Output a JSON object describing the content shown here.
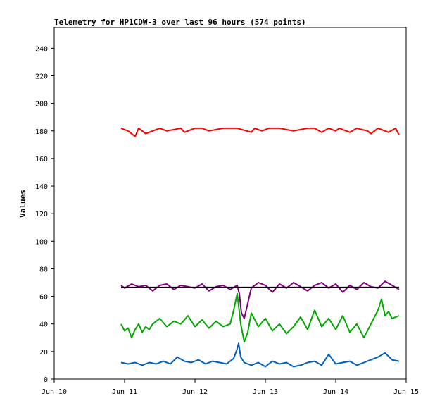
{
  "chart_data": {
    "type": "line",
    "title": "Telemetry for HP1CDW-3 over last 96 hours (574 points)",
    "xlabel": "",
    "ylabel": "Values",
    "x_ticks": [
      "Jun 10",
      "Jun 11",
      "Jun 12",
      "Jun 13",
      "Jun 14",
      "Jun 15"
    ],
    "xlim": [
      0,
      5
    ],
    "y_ticks": [
      0,
      20,
      40,
      60,
      80,
      100,
      120,
      140,
      160,
      180,
      200,
      220,
      240
    ],
    "ylim": [
      0,
      255
    ],
    "grid": false,
    "legend": "none",
    "series": [
      {
        "color": "#ff0000",
        "x": [
          0.95,
          1.05,
          1.15,
          1.2,
          1.3,
          1.5,
          1.6,
          1.8,
          1.85,
          2.0,
          2.1,
          2.2,
          2.4,
          2.6,
          2.8,
          2.85,
          2.95,
          3.05,
          3.2,
          3.4,
          3.6,
          3.7,
          3.8,
          3.9,
          4.0,
          4.05,
          4.2,
          4.3,
          4.45,
          4.5,
          4.6,
          4.7,
          4.75,
          4.85,
          4.9
        ],
        "y": [
          182,
          180,
          176,
          182,
          178,
          182,
          180,
          182,
          179,
          182,
          182,
          180,
          182,
          182,
          179,
          182,
          180,
          182,
          182,
          180,
          182,
          182,
          179,
          182,
          180,
          182,
          179,
          182,
          180,
          178,
          182,
          180,
          179,
          182,
          177
        ]
      },
      {
        "color": "#800080",
        "x": [
          0.95,
          1.0,
          1.1,
          1.2,
          1.3,
          1.4,
          1.5,
          1.6,
          1.7,
          1.8,
          1.9,
          2.0,
          2.1,
          2.2,
          2.3,
          2.4,
          2.5,
          2.6,
          2.63,
          2.66,
          2.7,
          2.8,
          2.9,
          3.0,
          3.1,
          3.2,
          3.3,
          3.4,
          3.5,
          3.6,
          3.7,
          3.8,
          3.9,
          4.0,
          4.1,
          4.2,
          4.3,
          4.4,
          4.5,
          4.6,
          4.7,
          4.8,
          4.9
        ],
        "y": [
          68,
          66,
          69,
          67,
          68,
          64,
          68,
          69,
          65,
          68,
          67,
          66,
          69,
          64,
          67,
          68,
          65,
          68,
          62,
          48,
          44,
          66,
          70,
          68,
          63,
          69,
          66,
          70,
          67,
          64,
          68,
          70,
          66,
          69,
          63,
          68,
          65,
          70,
          67,
          66,
          71,
          68,
          65
        ]
      },
      {
        "color": "#000000",
        "x": [
          0.95,
          4.9
        ],
        "y": [
          66.5,
          66.5
        ]
      },
      {
        "color": "#00aa00",
        "x": [
          0.95,
          1.0,
          1.05,
          1.1,
          1.15,
          1.2,
          1.25,
          1.3,
          1.35,
          1.4,
          1.5,
          1.6,
          1.7,
          1.8,
          1.9,
          2.0,
          2.1,
          2.2,
          2.3,
          2.4,
          2.5,
          2.55,
          2.6,
          2.65,
          2.7,
          2.75,
          2.8,
          2.9,
          3.0,
          3.1,
          3.2,
          3.3,
          3.4,
          3.5,
          3.6,
          3.7,
          3.8,
          3.9,
          4.0,
          4.1,
          4.2,
          4.3,
          4.4,
          4.5,
          4.6,
          4.65,
          4.7,
          4.75,
          4.8,
          4.9
        ],
        "y": [
          40,
          35,
          37,
          30,
          36,
          40,
          34,
          38,
          36,
          40,
          44,
          38,
          42,
          40,
          46,
          38,
          43,
          37,
          42,
          38,
          40,
          50,
          62,
          40,
          27,
          34,
          48,
          38,
          44,
          35,
          40,
          33,
          38,
          45,
          36,
          50,
          38,
          44,
          36,
          46,
          34,
          40,
          30,
          40,
          50,
          58,
          46,
          49,
          44,
          46
        ]
      },
      {
        "color": "#0060c0",
        "x": [
          0.95,
          1.05,
          1.15,
          1.25,
          1.35,
          1.45,
          1.55,
          1.65,
          1.75,
          1.85,
          1.95,
          2.05,
          2.15,
          2.25,
          2.35,
          2.45,
          2.55,
          2.6,
          2.62,
          2.65,
          2.7,
          2.8,
          2.9,
          3.0,
          3.1,
          3.2,
          3.3,
          3.4,
          3.5,
          3.6,
          3.7,
          3.8,
          3.9,
          4.0,
          4.1,
          4.2,
          4.3,
          4.4,
          4.5,
          4.6,
          4.7,
          4.8,
          4.9
        ],
        "y": [
          12,
          11,
          12,
          10,
          12,
          11,
          13,
          11,
          16,
          13,
          12,
          14,
          11,
          13,
          12,
          11,
          15,
          22,
          26,
          16,
          12,
          10,
          12,
          9,
          13,
          11,
          12,
          9,
          10,
          12,
          13,
          10,
          18,
          11,
          12,
          13,
          10,
          12,
          14,
          16,
          19,
          14,
          13
        ]
      }
    ]
  }
}
